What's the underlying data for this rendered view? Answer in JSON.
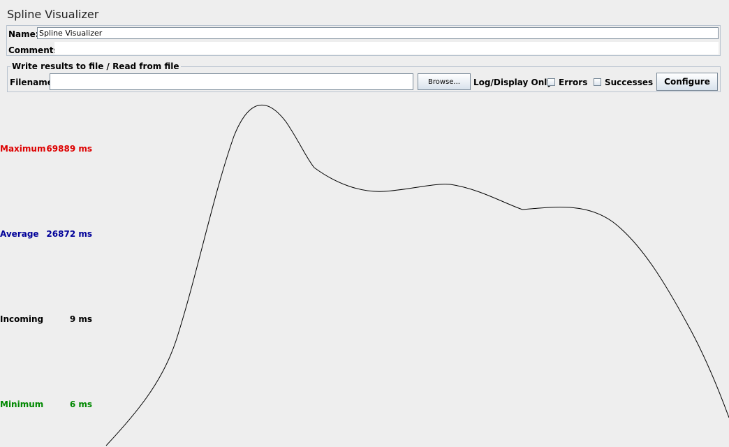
{
  "window": {
    "title": "Spline Visualizer"
  },
  "name_panel": {
    "name_label": "Name:",
    "name_value": "Spline Visualizer",
    "comments_label": "Comments:",
    "comments_value": ""
  },
  "file_panel": {
    "legend": "Write results to file / Read from file",
    "filename_label": "Filename",
    "filename_value": "",
    "browse_label": "Browse...",
    "log_display_label": "Log/Display Only:",
    "errors_label": "Errors",
    "errors_checked": false,
    "successes_label": "Successes",
    "successes_checked": false,
    "configure_label": "Configure"
  },
  "stats": [
    {
      "key": "maximum",
      "label": "Maximum",
      "value": "69889 ms",
      "color": "#dd0000"
    },
    {
      "key": "average",
      "label": "Average",
      "value": "26872 ms",
      "color": "#000099"
    },
    {
      "key": "incoming",
      "label": "Incoming",
      "value": "9 ms",
      "color": "#000000"
    },
    {
      "key": "minimum",
      "label": "Minimum",
      "value": "6 ms",
      "color": "#008800"
    }
  ],
  "graph": {
    "line_color": "#000000"
  }
}
